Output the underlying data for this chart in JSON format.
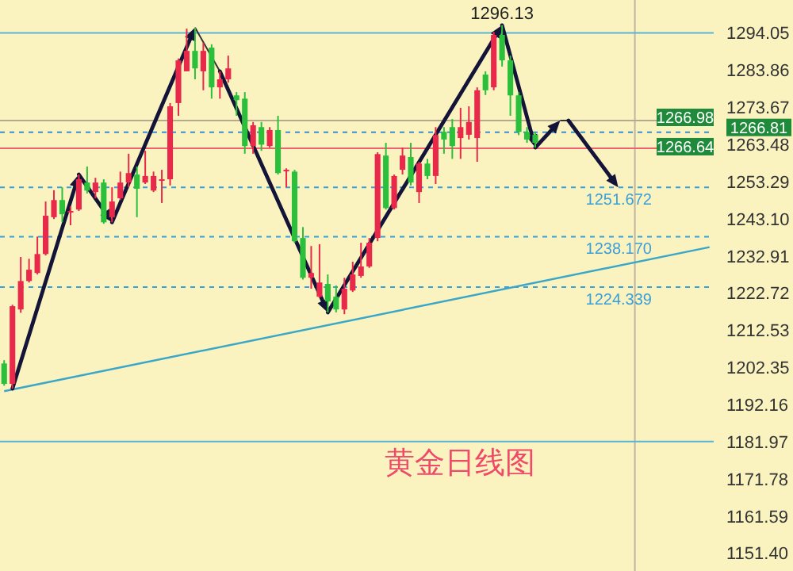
{
  "chart_data": {
    "type": "candlestick",
    "title": "黄金日线图",
    "categories": [
      null,
      null,
      null,
      null,
      null,
      null,
      null,
      null,
      null,
      null,
      null,
      null,
      null,
      null,
      null,
      null,
      null,
      null,
      null,
      null,
      null,
      null,
      null,
      null,
      null,
      null,
      null,
      null,
      null,
      null,
      null,
      null,
      null,
      null,
      null,
      null,
      null,
      null,
      null,
      null,
      null,
      null,
      null,
      null,
      null,
      null,
      null,
      null,
      null,
      null,
      null,
      null,
      null,
      null,
      null,
      null,
      null,
      null,
      null,
      null,
      null,
      null,
      null,
      null,
      null,
      null,
      null,
      null,
      null,
      null,
      null,
      null,
      null,
      null,
      null,
      null,
      null,
      null,
      null,
      null,
      null,
      null,
      null,
      null,
      null,
      null
    ],
    "ohlc": [
      [
        1203.4,
        1204.3,
        1197.3,
        1197.8
      ],
      [
        1197.8,
        1219.5,
        1196.5,
        1219.1
      ],
      [
        1218.2,
        1232.6,
        1217.3,
        1226.0
      ],
      [
        1226.0,
        1232.1,
        1225.6,
        1229.1
      ],
      [
        1228.2,
        1238.2,
        1227.8,
        1233.4
      ],
      [
        1233.4,
        1247.8,
        1233.0,
        1243.9
      ],
      [
        1243.5,
        1250.9,
        1243.0,
        1248.2
      ],
      [
        1248.2,
        1251.7,
        1242.1,
        1244.3
      ],
      [
        1245.0,
        1246.5,
        1241.3,
        1245.2
      ],
      [
        1245.6,
        1255.2,
        1245.2,
        1253.9
      ],
      [
        1253.0,
        1257.4,
        1250.0,
        1250.8
      ],
      [
        1250.4,
        1254.3,
        1248.7,
        1253.0
      ],
      [
        1253.0,
        1253.9,
        1241.7,
        1242.1
      ],
      [
        1243.5,
        1251.7,
        1242.1,
        1247.8
      ],
      [
        1248.7,
        1256.0,
        1248.2,
        1253.0
      ],
      [
        1253.0,
        1260.9,
        1251.7,
        1255.6
      ],
      [
        1255.2,
        1257.4,
        1243.5,
        1251.3
      ],
      [
        1253.0,
        1261.7,
        1252.6,
        1254.8
      ],
      [
        1250.8,
        1256.0,
        1250.4,
        1254.8
      ],
      [
        1253.7,
        1256.5,
        1247.4,
        1253.9
      ],
      [
        1253.9,
        1274.8,
        1252.2,
        1273.9
      ],
      [
        1274.8,
        1287.0,
        1271.3,
        1286.5
      ],
      [
        1283.5,
        1295.2,
        1283.5,
        1289.1
      ],
      [
        1289.1,
        1295.5,
        1281.3,
        1284.3
      ],
      [
        1283.5,
        1291.3,
        1278.3,
        1289.1
      ],
      [
        1290.0,
        1290.9,
        1276.0,
        1279.1
      ],
      [
        1279.1,
        1283.5,
        1276.0,
        1281.3
      ],
      [
        1281.3,
        1287.8,
        1280.4,
        1284.3
      ],
      [
        1276.9,
        1277.8,
        1271.3,
        1275.6
      ],
      [
        1276.0,
        1277.8,
        1260.9,
        1263.0
      ],
      [
        1263.0,
        1269.6,
        1260.9,
        1268.7
      ],
      [
        1268.2,
        1269.6,
        1261.7,
        1263.4
      ],
      [
        1263.0,
        1268.2,
        1262.6,
        1267.4
      ],
      [
        1267.4,
        1271.3,
        1255.2,
        1255.6
      ],
      [
        1256.3,
        1256.9,
        1251.7,
        1256.5
      ],
      [
        1256.0,
        1256.5,
        1236.5,
        1236.9
      ],
      [
        1237.8,
        1240.8,
        1226.4,
        1226.9
      ],
      [
        1226.9,
        1235.6,
        1223.9,
        1228.2
      ],
      [
        1221.7,
        1236.1,
        1221.3,
        1225.6
      ],
      [
        1225.2,
        1227.8,
        1217.4,
        1220.4
      ],
      [
        1221.7,
        1224.8,
        1217.4,
        1218.2
      ],
      [
        1218.2,
        1226.9,
        1216.9,
        1223.9
      ],
      [
        1223.4,
        1231.3,
        1223.0,
        1227.8
      ],
      [
        1227.4,
        1236.5,
        1226.9,
        1230.0
      ],
      [
        1230.0,
        1237.8,
        1229.6,
        1236.5
      ],
      [
        1237.8,
        1261.3,
        1236.9,
        1260.8
      ],
      [
        1260.4,
        1263.9,
        1245.6,
        1246.0
      ],
      [
        1246.0,
        1255.2,
        1245.6,
        1254.8
      ],
      [
        1256.5,
        1262.6,
        1255.2,
        1260.4
      ],
      [
        1260.0,
        1263.9,
        1252.2,
        1253.0
      ],
      [
        1250.4,
        1258.7,
        1247.4,
        1258.2
      ],
      [
        1258.2,
        1259.5,
        1253.9,
        1254.8
      ],
      [
        1254.8,
        1268.2,
        1252.6,
        1266.0
      ],
      [
        1266.9,
        1268.2,
        1260.9,
        1264.8
      ],
      [
        1268.2,
        1270.4,
        1259.5,
        1263.0
      ],
      [
        1265.2,
        1273.5,
        1259.5,
        1268.2
      ],
      [
        1266.1,
        1273.9,
        1264.8,
        1269.6
      ],
      [
        1265.2,
        1279.1,
        1258.7,
        1278.3
      ],
      [
        1282.6,
        1283.5,
        1277.0,
        1278.3
      ],
      [
        1279.1,
        1294.3,
        1278.3,
        1293.5
      ],
      [
        1293.5,
        1296.13,
        1284.8,
        1286.5
      ],
      [
        1286.5,
        1287.8,
        1271.3,
        1276.9
      ],
      [
        1276.9,
        1277.8,
        1266.0,
        1266.9
      ],
      [
        1266.9,
        1268.2,
        1263.9,
        1264.8
      ],
      [
        1266.1,
        1266.9,
        1262.6,
        1263.9
      ],
      null,
      null,
      null,
      null,
      null,
      null,
      null,
      null,
      null,
      null,
      null,
      null,
      null,
      null,
      null,
      null,
      null,
      null,
      null,
      null,
      null
    ],
    "colors": [
      "#2bbf3c",
      "#e8294a",
      "#e8294a",
      "#e8294a",
      "#e8294a",
      "#e8294a",
      "#e8294a",
      "#2bbf3c",
      "#e8294a",
      "#e8294a",
      "#2bbf3c",
      "#e8294a",
      "#2bbf3c",
      "#e8294a",
      "#e8294a",
      "#e8294a",
      "#2bbf3c",
      "#e8294a",
      "#e8294a",
      "#e8294a",
      "#e8294a",
      "#e8294a",
      "#e8294a",
      "#2bbf3c",
      "#e8294a",
      "#2bbf3c",
      "#e8294a",
      "#e8294a",
      "#2bbf3c",
      "#2bbf3c",
      "#e8294a",
      "#2bbf3c",
      "#e8294a",
      "#2bbf3c",
      "#e8294a",
      "#2bbf3c",
      "#2bbf3c",
      "#e8294a",
      "#e8294a",
      "#2bbf3c",
      "#2bbf3c",
      "#e8294a",
      "#e8294a",
      "#e8294a",
      "#e8294a",
      "#e8294a",
      "#2bbf3c",
      "#e8294a",
      "#e8294a",
      "#2bbf3c",
      "#e8294a",
      "#2bbf3c",
      "#e8294a",
      "#2bbf3c",
      "#2bbf3c",
      "#e8294a",
      "#e8294a",
      "#e8294a",
      "#2bbf3c",
      "#e8294a",
      "#2bbf3c",
      "#2bbf3c",
      "#2bbf3c",
      "#2bbf3c",
      "#2bbf3c",
      null,
      null,
      null,
      null,
      null,
      null,
      null,
      null,
      null,
      null,
      null,
      null,
      null,
      null,
      null,
      null,
      null,
      null,
      null,
      null,
      null
    ],
    "series": [
      {
        "type": "line",
        "values": [
          1195.8,
          null,
          null,
          null,
          null,
          null,
          null,
          null,
          null,
          null,
          null,
          null,
          null,
          null,
          null,
          null,
          null,
          null,
          null,
          null,
          null,
          null,
          null,
          null,
          null,
          null,
          null,
          null,
          null,
          null,
          null,
          null,
          null,
          null,
          null,
          null,
          null,
          null,
          null,
          null,
          null,
          null,
          null,
          null,
          null,
          null,
          null,
          null,
          null,
          null,
          null,
          null,
          null,
          null,
          null,
          null,
          null,
          null,
          null,
          null,
          null,
          null,
          null,
          null,
          null,
          null,
          null,
          null,
          null,
          null,
          null,
          null,
          null,
          null,
          null,
          null,
          null,
          null,
          null,
          null,
          null,
          null,
          null,
          null,
          null,
          1235.3
        ],
        "color": "#3aa6c8"
      }
    ],
    "ylim": [
      1146.5,
      1303.05
    ],
    "yticks": [
      1294.05,
      1283.86,
      1273.67,
      1263.48,
      1253.29,
      {
        "value": 1243.1,
        "label": "1243.10"
      },
      1232.91,
      1222.72,
      1212.53,
      1202.35,
      1192.16,
      1181.97,
      1171.78,
      1161.59,
      {
        "value": 1151.4,
        "label": "1151.40"
      }
    ],
    "tick_labels": "y",
    "grid": false,
    "ref_lines": [
      {
        "axis": "y",
        "value": 1294.05,
        "color": "#5ab4d6",
        "line_style": "solid"
      },
      {
        "axis": "y",
        "value": 1270.0,
        "color": "#b4aa90",
        "line_style": "solid"
      },
      {
        "axis": "y",
        "value": 1266.81,
        "color": "#3a8fd0",
        "line_style": "dashed"
      },
      {
        "axis": "y",
        "value": 1262.4,
        "color": "#f06070",
        "line_style": "solid"
      },
      {
        "axis": "y",
        "value": 1251.672,
        "label": "1251.672",
        "color": "#3a9fd8",
        "line_style": "dashed"
      },
      {
        "axis": "y",
        "value": 1238.17,
        "label": "1238.170",
        "color": "#3a9fd8",
        "line_style": "dashed"
      },
      {
        "axis": "y",
        "value": 1224.339,
        "label": "1224.339",
        "color": "#3a9fd8",
        "line_style": "dashed"
      },
      {
        "axis": "y",
        "value": 1181.97,
        "color": "#5ab4d6",
        "line_style": "solid"
      }
    ],
    "annotations": [
      {
        "text": "1296.13",
        "y": 1296.13
      },
      "1266.98",
      "1266.81",
      "1266.64"
    ]
  }
}
